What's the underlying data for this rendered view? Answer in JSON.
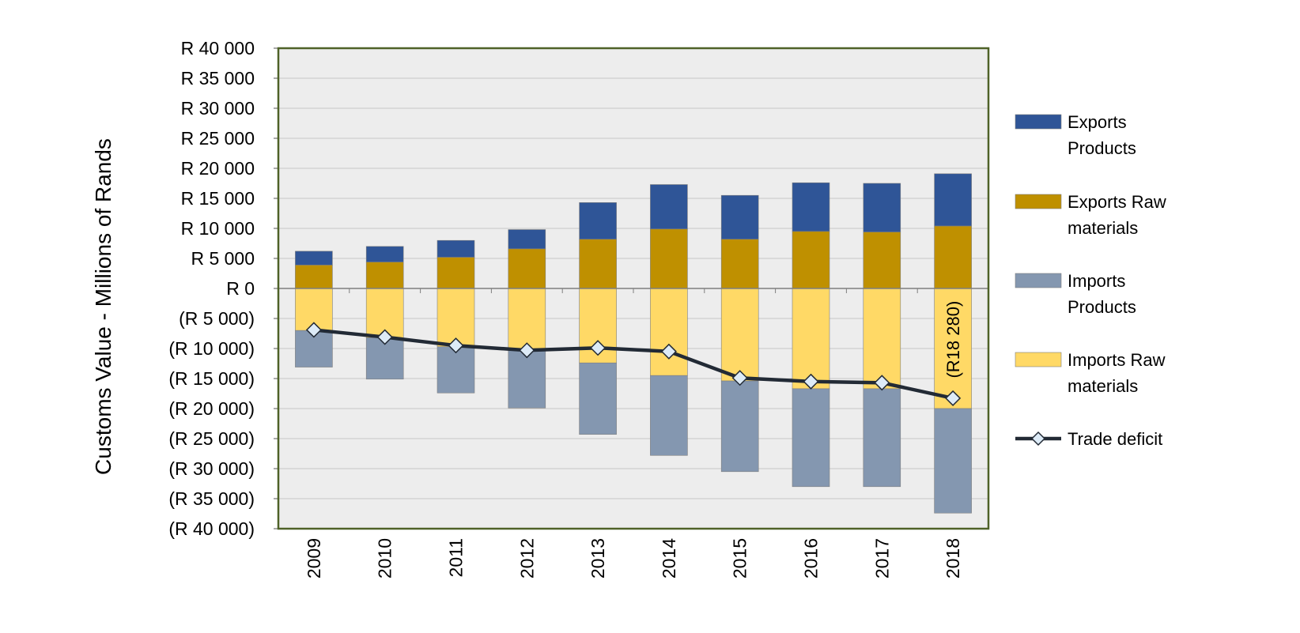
{
  "chart_data": {
    "type": "bar",
    "stacked": true,
    "categories": [
      "2009",
      "2010",
      "2011",
      "2012",
      "2013",
      "2014",
      "2015",
      "2016",
      "2017",
      "2018"
    ],
    "ylabel": "Customs Value - Millions of Rands",
    "ylim": [
      -40000,
      40000
    ],
    "ytick_step": 5000,
    "ytick_labels": [
      "R 40 000",
      "R 35 000",
      "R 30 000",
      "R 25 000",
      "R 20 000",
      "R 15 000",
      "R 10 000",
      "R 5 000",
      "R 0",
      "(R 5 000)",
      "(R 10 000)",
      "(R 15 000)",
      "(R 20 000)",
      "(R 25 000)",
      "(R 30 000)",
      "(R 35 000)",
      "(R 40 000)"
    ],
    "grid": true,
    "legend_position": "right",
    "series": [
      {
        "name": "Exports Products",
        "kind": "bar",
        "color": "#2F5597",
        "values": [
          2300,
          2600,
          2800,
          3200,
          6100,
          7400,
          7300,
          8100,
          8100,
          8700
        ]
      },
      {
        "name": "Exports Raw materials",
        "kind": "bar",
        "color": "#BF9000",
        "values": [
          3900,
          4400,
          5200,
          6600,
          8200,
          9900,
          8200,
          9500,
          9400,
          10400
        ]
      },
      {
        "name": "Imports Products",
        "kind": "bar",
        "color": "#8497B0",
        "values": [
          -6100,
          -6900,
          -7700,
          -9700,
          -11900,
          -13300,
          -15100,
          -16300,
          -16300,
          -17400
        ]
      },
      {
        "name": "Imports Raw materials",
        "kind": "bar",
        "color": "#FFD966",
        "values": [
          -7000,
          -8200,
          -9700,
          -10200,
          -12400,
          -14500,
          -15400,
          -16700,
          -16700,
          -20000
        ]
      },
      {
        "name": "Trade deficit",
        "kind": "line",
        "color": "#222A35",
        "values": [
          -6900,
          -8100,
          -9500,
          -10300,
          -9900,
          -10500,
          -14900,
          -15500,
          -15700,
          -18280
        ]
      }
    ],
    "annotations": [
      {
        "category": "2018",
        "text": "(R18 280)"
      }
    ]
  }
}
